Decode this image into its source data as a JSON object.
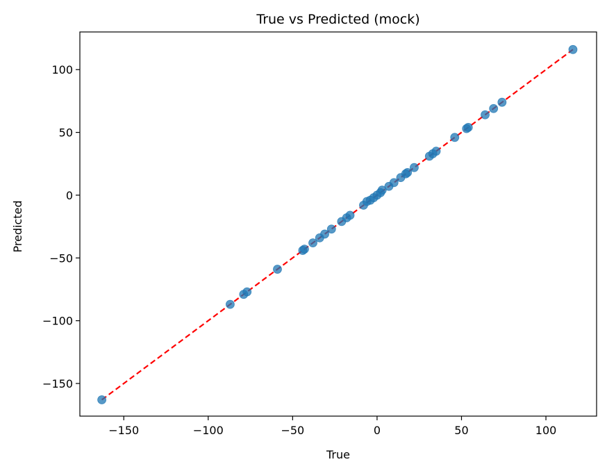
{
  "chart_data": {
    "type": "scatter",
    "title": "True vs Predicted (mock)",
    "xlabel": "True",
    "ylabel": "Predicted",
    "xlim": [
      -176,
      130
    ],
    "ylim": [
      -176,
      130
    ],
    "xticks": [
      -150,
      -100,
      -50,
      0,
      50,
      100
    ],
    "yticks": [
      -150,
      -100,
      -50,
      0,
      50,
      100
    ],
    "xtick_labels": [
      "−150",
      "−100",
      "−50",
      "0",
      "50",
      "100"
    ],
    "ytick_labels": [
      "−150",
      "−100",
      "−50",
      "0",
      "50",
      "100"
    ],
    "grid": false,
    "colors": {
      "points": "#1f77b4",
      "reference_line": "#ff0000"
    },
    "reference_line": {
      "style": "dashed",
      "from": [
        -163,
        -163
      ],
      "to": [
        116,
        116
      ]
    },
    "points": [
      [
        -163,
        -163
      ],
      [
        -87,
        -87
      ],
      [
        -79,
        -79
      ],
      [
        -77,
        -77
      ],
      [
        -59,
        -59
      ],
      [
        -44,
        -44
      ],
      [
        -43,
        -43
      ],
      [
        -38,
        -38
      ],
      [
        -34,
        -34
      ],
      [
        -31,
        -31
      ],
      [
        -27,
        -27
      ],
      [
        -21,
        -21
      ],
      [
        -18,
        -18
      ],
      [
        -16,
        -16
      ],
      [
        -8,
        -8
      ],
      [
        -6,
        -5
      ],
      [
        -4,
        -4
      ],
      [
        -2,
        -2
      ],
      [
        0,
        0
      ],
      [
        2,
        2
      ],
      [
        3,
        4
      ],
      [
        7,
        7
      ],
      [
        10,
        10
      ],
      [
        14,
        14
      ],
      [
        17,
        17
      ],
      [
        18,
        18
      ],
      [
        22,
        22
      ],
      [
        31,
        31
      ],
      [
        33,
        33
      ],
      [
        35,
        35
      ],
      [
        46,
        46
      ],
      [
        53,
        53
      ],
      [
        54,
        54
      ],
      [
        64,
        64
      ],
      [
        69,
        69
      ],
      [
        74,
        74
      ],
      [
        116,
        116
      ]
    ]
  }
}
